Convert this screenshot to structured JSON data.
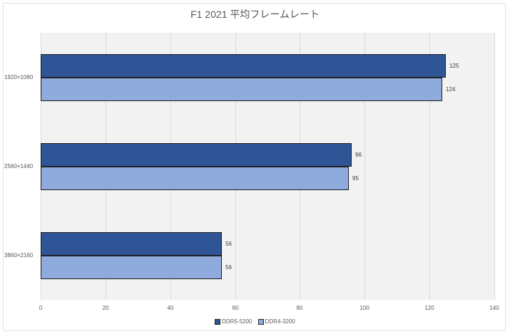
{
  "chart_data": {
    "type": "bar",
    "orientation": "horizontal",
    "title": "F1 2021 平均フレームレート",
    "xlabel": "",
    "ylabel": "",
    "categories": [
      "1920×1080",
      "2560×1440",
      "3860×2160"
    ],
    "series": [
      {
        "name": "DDR5-5200",
        "color": "#2f5597",
        "values": [
          125,
          96,
          56
        ]
      },
      {
        "name": "DDR4-3200",
        "color": "#8faadc",
        "values": [
          124,
          95,
          56
        ]
      }
    ],
    "xlim": [
      0,
      140
    ],
    "xticks": [
      "0",
      "20",
      "40",
      "60",
      "80",
      "100",
      "120",
      "140"
    ],
    "grid": true,
    "legend_position": "bottom",
    "data_labels": true
  },
  "title": "F1 2021 平均フレームレート",
  "categories": [
    {
      "label": "1920×1080",
      "ddr5": "125",
      "ddr4": "124"
    },
    {
      "label": "2560×1440",
      "ddr5": "96",
      "ddr4": "95"
    },
    {
      "label": "3860×2160",
      "ddr5": "56",
      "ddr4": "56"
    }
  ],
  "ticks": [
    "0",
    "20",
    "40",
    "60",
    "80",
    "100",
    "120",
    "140"
  ],
  "legend": {
    "ddr5": "DDR5-5200",
    "ddr4": "DDR4-3200"
  }
}
